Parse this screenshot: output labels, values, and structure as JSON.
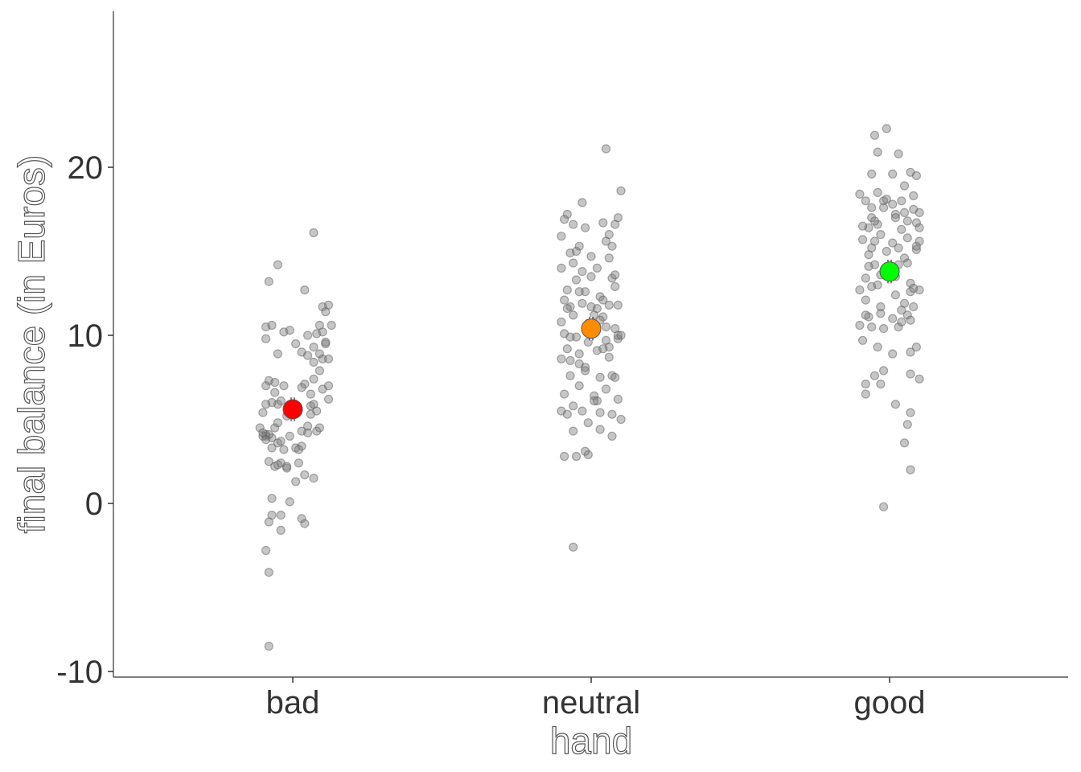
{
  "chart_data": {
    "type": "scatter",
    "title": "",
    "xlabel": "hand",
    "ylabel": "final balance (in Euros)",
    "categories": [
      "bad",
      "neutral",
      "good"
    ],
    "ylim": [
      -10.5,
      29
    ],
    "yticks": [
      -10,
      0,
      10,
      20
    ],
    "grid": false,
    "legend": "none",
    "means": [
      {
        "category": "bad",
        "mean": 5.6,
        "ci": [
          4.9,
          6.3
        ],
        "color": "#ff0000"
      },
      {
        "category": "neutral",
        "mean": 10.4,
        "ci": [
          9.7,
          11.1
        ],
        "color": "#ff8c00"
      },
      {
        "category": "good",
        "mean": 13.8,
        "ci": [
          13.1,
          14.5
        ],
        "color": "#00ff00"
      }
    ],
    "series": [
      {
        "category": "bad",
        "points": [
          [
            -0.09,
            10.5
          ],
          [
            -0.07,
            10.6
          ],
          [
            -0.09,
            9.8
          ],
          [
            -0.05,
            8.9
          ],
          [
            -0.08,
            7.3
          ],
          [
            -0.09,
            7.0
          ],
          [
            -0.06,
            7.2
          ],
          [
            -0.05,
            5.9
          ],
          [
            -0.03,
            10.2
          ],
          [
            -0.01,
            10.3
          ],
          [
            0.01,
            9.5
          ],
          [
            0.03,
            9.0
          ],
          [
            0.05,
            8.8
          ],
          [
            0.07,
            9.3
          ],
          [
            0.08,
            10.1
          ],
          [
            0.1,
            10.2
          ],
          [
            0.09,
            10.6
          ],
          [
            0.1,
            11.7
          ],
          [
            0.12,
            11.8
          ],
          [
            0.13,
            10.6
          ],
          [
            0.11,
            11.4
          ],
          [
            0.11,
            9.5
          ],
          [
            0.09,
            8.9
          ],
          [
            0.1,
            8.6
          ],
          [
            0.12,
            8.6
          ],
          [
            0.09,
            7.9
          ],
          [
            0.07,
            7.4
          ],
          [
            0.1,
            6.8
          ],
          [
            0.12,
            6.2
          ],
          [
            0.08,
            5.5
          ],
          [
            0.06,
            5.3
          ],
          [
            0.05,
            4.2
          ],
          [
            0.03,
            4.3
          ],
          [
            0.01,
            5.5
          ],
          [
            -0.02,
            5.2
          ],
          [
            -0.04,
            6.1
          ],
          [
            -0.06,
            6.6
          ],
          [
            -0.07,
            6.0
          ],
          [
            -0.09,
            5.9
          ],
          [
            -0.1,
            5.4
          ],
          [
            -0.11,
            4.5
          ],
          [
            -0.09,
            4.1
          ],
          [
            -0.07,
            3.9
          ],
          [
            -0.05,
            3.6
          ],
          [
            -0.03,
            3.2
          ],
          [
            -0.02,
            2.1
          ],
          [
            -0.04,
            2.4
          ],
          [
            -0.06,
            2.2
          ],
          [
            -0.08,
            2.5
          ],
          [
            -0.07,
            0.3
          ],
          [
            -0.01,
            0.1
          ],
          [
            0.01,
            1.3
          ],
          [
            0.04,
            1.7
          ],
          [
            0.07,
            1.5
          ],
          [
            -0.07,
            -0.7
          ],
          [
            -0.08,
            -1.1
          ],
          [
            -0.04,
            -0.7
          ],
          [
            -0.04,
            -1.6
          ],
          [
            0.03,
            -0.9
          ],
          [
            0.04,
            -1.2
          ],
          [
            -0.09,
            -2.8
          ],
          [
            -0.08,
            -4.1
          ],
          [
            -0.08,
            -8.5
          ],
          [
            0.07,
            16.1
          ],
          [
            -0.05,
            14.2
          ],
          [
            -0.08,
            13.2
          ],
          [
            0.04,
            12.7
          ],
          [
            0.07,
            8.4
          ],
          [
            -0.09,
            4.0
          ],
          [
            0.01,
            3.3
          ],
          [
            -0.1,
            4.0
          ],
          [
            -0.06,
            4.5
          ],
          [
            -0.04,
            3.7
          ],
          [
            -0.02,
            2.2
          ],
          [
            0.03,
            3.4
          ],
          [
            0.05,
            4.6
          ],
          [
            0.08,
            4.3
          ],
          [
            0.02,
            3.2
          ],
          [
            -0.05,
            4.8
          ],
          [
            0.0,
            5.9
          ],
          [
            -0.03,
            7.0
          ],
          [
            0.06,
            6.5
          ],
          [
            0.04,
            7.1
          ],
          [
            -0.08,
            4.1
          ],
          [
            0.02,
            2.4
          ],
          [
            0.06,
            5.8
          ],
          [
            0.09,
            4.5
          ],
          [
            -0.1,
            4.2
          ],
          [
            -0.05,
            2.3
          ],
          [
            0.03,
            6.9
          ],
          [
            -0.07,
            3.3
          ],
          [
            0.11,
            9.6
          ],
          [
            0.05,
            10.0
          ],
          [
            -0.01,
            4.0
          ],
          [
            -0.09,
            3.8
          ],
          [
            0.07,
            5.9
          ],
          [
            0.12,
            7.0
          ]
        ]
      },
      {
        "category": "neutral",
        "points": [
          [
            0.05,
            21.1
          ],
          [
            0.1,
            18.6
          ],
          [
            -0.03,
            17.9
          ],
          [
            -0.08,
            17.2
          ],
          [
            -0.09,
            16.9
          ],
          [
            -0.06,
            16.6
          ],
          [
            -0.02,
            16.4
          ],
          [
            0.04,
            16.7
          ],
          [
            0.08,
            16.6
          ],
          [
            0.09,
            17.0
          ],
          [
            -0.1,
            15.9
          ],
          [
            -0.07,
            14.9
          ],
          [
            -0.04,
            15.3
          ],
          [
            0.0,
            14.7
          ],
          [
            0.05,
            15.6
          ],
          [
            0.07,
            15.3
          ],
          [
            -0.1,
            14.0
          ],
          [
            -0.06,
            14.3
          ],
          [
            0.02,
            14.0
          ],
          [
            0.06,
            14.6
          ],
          [
            -0.05,
            13.3
          ],
          [
            0.0,
            13.5
          ],
          [
            0.07,
            13.4
          ],
          [
            -0.08,
            12.7
          ],
          [
            -0.02,
            12.6
          ],
          [
            0.03,
            12.3
          ],
          [
            0.08,
            12.9
          ],
          [
            -0.07,
            11.7
          ],
          [
            -0.03,
            11.9
          ],
          [
            0.01,
            11.2
          ],
          [
            0.06,
            11.8
          ],
          [
            0.09,
            11.8
          ],
          [
            -0.1,
            10.8
          ],
          [
            -0.06,
            11.2
          ],
          [
            -0.01,
            10.7
          ],
          [
            0.04,
            11.1
          ],
          [
            0.08,
            10.4
          ],
          [
            -0.09,
            10.1
          ],
          [
            -0.05,
            9.9
          ],
          [
            0.0,
            10.1
          ],
          [
            0.05,
            9.7
          ],
          [
            0.09,
            9.8
          ],
          [
            -0.08,
            9.2
          ],
          [
            -0.04,
            8.9
          ],
          [
            0.02,
            9.1
          ],
          [
            0.06,
            9.3
          ],
          [
            -0.1,
            8.6
          ],
          [
            -0.07,
            8.5
          ],
          [
            0.06,
            8.7
          ],
          [
            -0.02,
            7.9
          ],
          [
            0.03,
            7.5
          ],
          [
            0.07,
            7.6
          ],
          [
            -0.07,
            7.6
          ],
          [
            -0.04,
            7.0
          ],
          [
            0.01,
            6.4
          ],
          [
            0.05,
            6.8
          ],
          [
            -0.09,
            6.5
          ],
          [
            -0.06,
            5.8
          ],
          [
            0.02,
            6.1
          ],
          [
            0.09,
            6.2
          ],
          [
            -0.1,
            5.5
          ],
          [
            -0.08,
            5.3
          ],
          [
            -0.03,
            5.5
          ],
          [
            0.03,
            5.4
          ],
          [
            0.07,
            5.3
          ],
          [
            -0.01,
            4.8
          ],
          [
            0.03,
            4.4
          ],
          [
            0.1,
            5.0
          ],
          [
            -0.06,
            4.3
          ],
          [
            0.07,
            4.0
          ],
          [
            -0.09,
            2.8
          ],
          [
            -0.05,
            2.8
          ],
          [
            -0.01,
            2.9
          ],
          [
            -0.02,
            3.1
          ],
          [
            -0.06,
            -2.6
          ],
          [
            0.09,
            10.0
          ],
          [
            -0.04,
            12.6
          ],
          [
            0.04,
            12.1
          ],
          [
            -0.02,
            8.1
          ],
          [
            0.05,
            10.5
          ],
          [
            0.08,
            7.5
          ],
          [
            -0.08,
            11.6
          ],
          [
            0.01,
            6.1
          ],
          [
            -0.03,
            13.8
          ],
          [
            0.03,
            10.9
          ],
          [
            -0.07,
            9.9
          ],
          [
            0.1,
            10.0
          ],
          [
            -0.05,
            15.0
          ],
          [
            0.04,
            9.2
          ],
          [
            0.02,
            11.6
          ],
          [
            -0.09,
            12.1
          ],
          [
            0.06,
            16.0
          ],
          [
            -0.01,
            9.6
          ],
          [
            0.08,
            13.6
          ],
          [
            -0.04,
            8.3
          ],
          [
            0.0,
            11.7
          ]
        ]
      },
      {
        "category": "good",
        "points": [
          [
            -0.01,
            22.3
          ],
          [
            -0.05,
            21.9
          ],
          [
            -0.04,
            20.9
          ],
          [
            0.03,
            20.8
          ],
          [
            0.07,
            19.7
          ],
          [
            -0.06,
            19.6
          ],
          [
            0.01,
            19.6
          ],
          [
            0.09,
            19.5
          ],
          [
            -0.04,
            18.5
          ],
          [
            -0.1,
            18.4
          ],
          [
            -0.08,
            18.0
          ],
          [
            -0.02,
            18.0
          ],
          [
            0.04,
            18.0
          ],
          [
            0.08,
            18.3
          ],
          [
            -0.06,
            17.6
          ],
          [
            0.01,
            17.8
          ],
          [
            0.05,
            17.3
          ],
          [
            0.1,
            17.3
          ],
          [
            -0.06,
            17.0
          ],
          [
            0.02,
            17.2
          ],
          [
            0.09,
            16.7
          ],
          [
            -0.07,
            16.4
          ],
          [
            -0.03,
            16.0
          ],
          [
            0.04,
            16.3
          ],
          [
            0.1,
            16.4
          ],
          [
            -0.09,
            15.7
          ],
          [
            -0.05,
            15.6
          ],
          [
            0.01,
            15.5
          ],
          [
            0.06,
            15.8
          ],
          [
            0.09,
            15.1
          ],
          [
            -0.07,
            14.8
          ],
          [
            -0.01,
            15.0
          ],
          [
            0.05,
            14.6
          ],
          [
            -0.05,
            14.2
          ],
          [
            0.03,
            14.2
          ],
          [
            -0.08,
            13.4
          ],
          [
            -0.03,
            13.6
          ],
          [
            0.07,
            13.1
          ],
          [
            -0.1,
            12.7
          ],
          [
            -0.06,
            12.9
          ],
          [
            0.02,
            12.4
          ],
          [
            0.07,
            12.6
          ],
          [
            0.1,
            12.7
          ],
          [
            -0.08,
            12.1
          ],
          [
            -0.03,
            11.7
          ],
          [
            0.04,
            11.5
          ],
          [
            -0.07,
            11.1
          ],
          [
            0.01,
            11.0
          ],
          [
            0.06,
            11.2
          ],
          [
            -0.1,
            10.6
          ],
          [
            -0.06,
            10.5
          ],
          [
            -0.02,
            10.4
          ],
          [
            0.03,
            10.5
          ],
          [
            0.07,
            10.9
          ],
          [
            -0.09,
            9.7
          ],
          [
            -0.04,
            9.3
          ],
          [
            0.01,
            8.9
          ],
          [
            0.07,
            9.0
          ],
          [
            0.09,
            9.3
          ],
          [
            -0.02,
            7.9
          ],
          [
            -0.05,
            7.6
          ],
          [
            -0.03,
            7.1
          ],
          [
            -0.08,
            7.1
          ],
          [
            0.07,
            7.7
          ],
          [
            0.1,
            7.4
          ],
          [
            -0.08,
            6.5
          ],
          [
            0.02,
            5.9
          ],
          [
            0.07,
            5.4
          ],
          [
            0.06,
            4.7
          ],
          [
            0.05,
            3.6
          ],
          [
            0.07,
            2.0
          ],
          [
            -0.02,
            -0.2
          ],
          [
            -0.02,
            17.6
          ],
          [
            0.05,
            18.9
          ],
          [
            0.08,
            17.5
          ],
          [
            -0.04,
            16.6
          ],
          [
            0.03,
            15.2
          ],
          [
            -0.07,
            14.1
          ],
          [
            0.09,
            15.3
          ],
          [
            -0.04,
            13.0
          ],
          [
            0.05,
            11.9
          ],
          [
            -0.08,
            11.2
          ],
          [
            0.02,
            13.5
          ],
          [
            0.08,
            11.7
          ],
          [
            -0.01,
            18.1
          ],
          [
            0.06,
            14.3
          ],
          [
            -0.05,
            16.8
          ],
          [
            0.04,
            10.8
          ],
          [
            0.1,
            15.6
          ],
          [
            -0.09,
            16.5
          ],
          [
            0.02,
            17.0
          ],
          [
            0.06,
            16.8
          ],
          [
            -0.03,
            11.3
          ],
          [
            0.08,
            12.8
          ],
          [
            -0.06,
            15.2
          ]
        ]
      }
    ]
  }
}
